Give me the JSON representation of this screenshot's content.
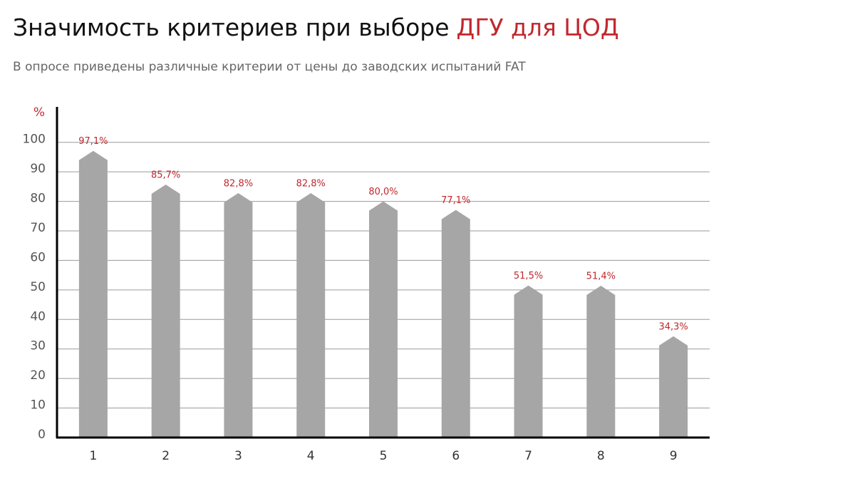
{
  "chart_data": {
    "type": "bar",
    "title": "Значимость критериев при выборе",
    "title_highlight": "ДГУ для ЦОД",
    "subtitle": "В опросе приведены различные критерии от цены до заводских испытаний FAT",
    "y_label": "%",
    "categories": [
      "1",
      "2",
      "3",
      "4",
      "5",
      "6",
      "7",
      "8",
      "9"
    ],
    "values": [
      97.1,
      85.7,
      82.8,
      82.8,
      80.0,
      77.1,
      51.5,
      51.4,
      34.3
    ],
    "value_labels": [
      "97,1%",
      "85,7%",
      "82,8%",
      "82,8%",
      "80,0%",
      "77,1%",
      "51,5%",
      "51,4%",
      "34,3%"
    ],
    "color": "#a6a6a6",
    "accent_color": "#c0282d",
    "ylim": [
      0,
      112
    ],
    "yticks": [
      0,
      10,
      20,
      30,
      40,
      50,
      60,
      70,
      80,
      90,
      100
    ],
    "grid": true
  }
}
